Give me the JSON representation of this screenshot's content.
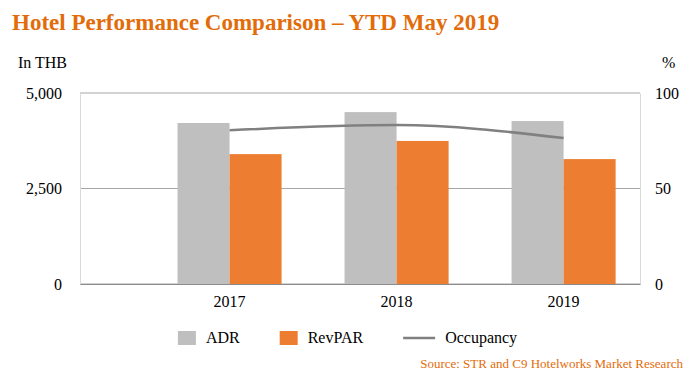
{
  "chart_data": {
    "type": "bar",
    "title": "Hotel Performance Comparison – YTD May 2019",
    "ylabel": "In THB",
    "y2label": "%",
    "source": "Source: STR and C9 Hotelworks Market Research",
    "categories": [
      "2017",
      "2018",
      "2019"
    ],
    "series": [
      {
        "name": "ADR",
        "type": "bar",
        "color": "#bfbfbf",
        "values": [
          4215,
          4500,
          4265
        ]
      },
      {
        "name": "RevPAR",
        "type": "bar",
        "color": "#ed7d31",
        "values": [
          3400,
          3745,
          3270
        ]
      },
      {
        "name": "Occupancy",
        "type": "line",
        "axis": "y2",
        "color": "#808080",
        "line_style": "solid",
        "values": [
          80.5,
          83.2,
          76.4
        ]
      }
    ],
    "ylim": [
      0,
      5000
    ],
    "yticks": [
      0,
      {
        "value": 2500,
        "label": "2,500"
      },
      {
        "value": 5000,
        "label": "5,000"
      }
    ],
    "y2lim": [
      0,
      100
    ],
    "y2ticks": [
      0,
      50,
      100
    ],
    "grid": true,
    "legend": "bottom"
  }
}
